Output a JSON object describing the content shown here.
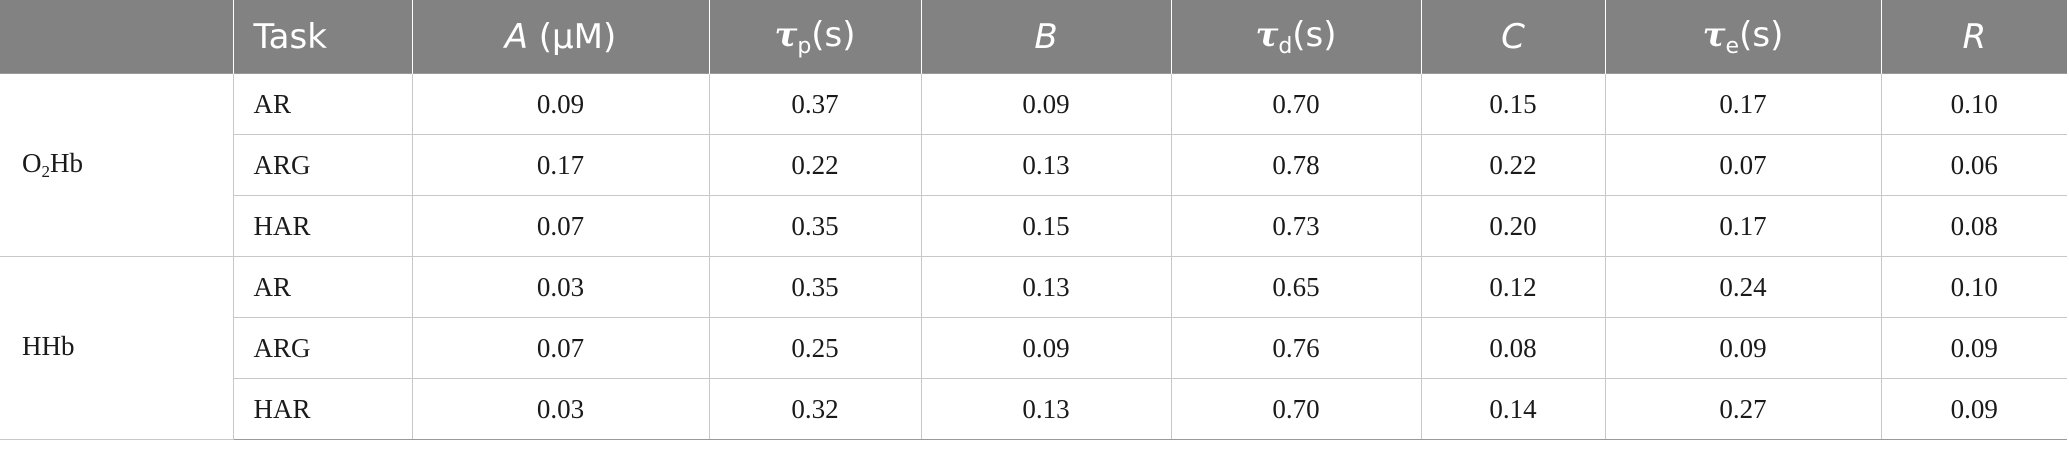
{
  "header": {
    "task": "Task",
    "a_sym": "A",
    "a_unit": " (μM)",
    "tau": "τ",
    "tau_p_sub": "p",
    "tau_d_sub": "d",
    "tau_e_sub": "e",
    "seconds": "(s)",
    "b": "B",
    "c": "C",
    "r": "R"
  },
  "groups": [
    {
      "label_prefix": "O",
      "label_sub": "2",
      "label_suffix": "Hb",
      "rows": [
        {
          "task": "AR",
          "A": "0.09",
          "tp": "0.37",
          "B": "0.09",
          "td": "0.70",
          "C": "0.15",
          "te": "0.17",
          "R": "0.10"
        },
        {
          "task": "ARG",
          "A": "0.17",
          "tp": "0.22",
          "B": "0.13",
          "td": "0.78",
          "C": "0.22",
          "te": "0.07",
          "R": "0.06"
        },
        {
          "task": "HAR",
          "A": "0.07",
          "tp": "0.35",
          "B": "0.15",
          "td": "0.73",
          "C": "0.20",
          "te": "0.17",
          "R": "0.08"
        }
      ]
    },
    {
      "label_prefix": "HHb",
      "label_sub": "",
      "label_suffix": "",
      "rows": [
        {
          "task": "AR",
          "A": "0.03",
          "tp": "0.35",
          "B": "0.13",
          "td": "0.65",
          "C": "0.12",
          "te": "0.24",
          "R": "0.10"
        },
        {
          "task": "ARG",
          "A": "0.07",
          "tp": "0.25",
          "B": "0.09",
          "td": "0.76",
          "C": "0.08",
          "te": "0.09",
          "R": "0.09"
        },
        {
          "task": "HAR",
          "A": "0.03",
          "tp": "0.32",
          "B": "0.13",
          "td": "0.70",
          "C": "0.14",
          "te": "0.27",
          "R": "0.09"
        }
      ]
    }
  ]
}
